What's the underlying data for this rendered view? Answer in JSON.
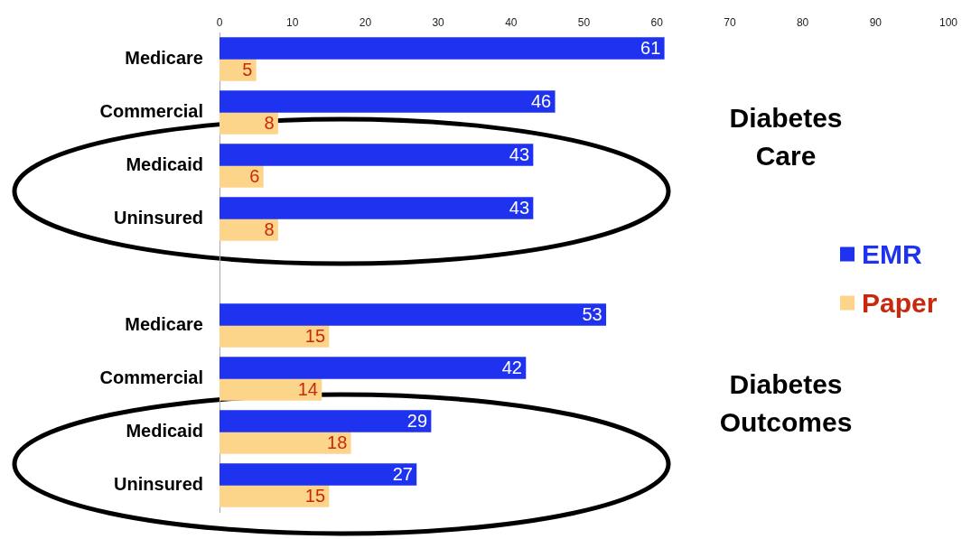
{
  "chart_data": {
    "type": "bar",
    "orientation": "horizontal",
    "categories": [
      "Medicare",
      "Commercial",
      "Medicaid",
      "Uninsured",
      null,
      "Medicare",
      "Commercial",
      "Medicaid",
      "Uninsured"
    ],
    "series": [
      {
        "name": "EMR",
        "color": "#1f32f0",
        "values": [
          61,
          46,
          43,
          43,
          null,
          53,
          42,
          29,
          27
        ]
      },
      {
        "name": "Paper",
        "color": "#fdd58a",
        "values": [
          5,
          8,
          6,
          8,
          null,
          15,
          14,
          18,
          15
        ]
      }
    ],
    "xlim": [
      0,
      100
    ],
    "xticks": [
      0,
      10,
      20,
      30,
      40,
      50,
      60,
      70,
      80,
      90,
      100
    ],
    "grid": false,
    "legend": "right",
    "data_labels": true,
    "annotations": [
      "Diabetes Care",
      "Diabetes Outcomes"
    ]
  }
}
